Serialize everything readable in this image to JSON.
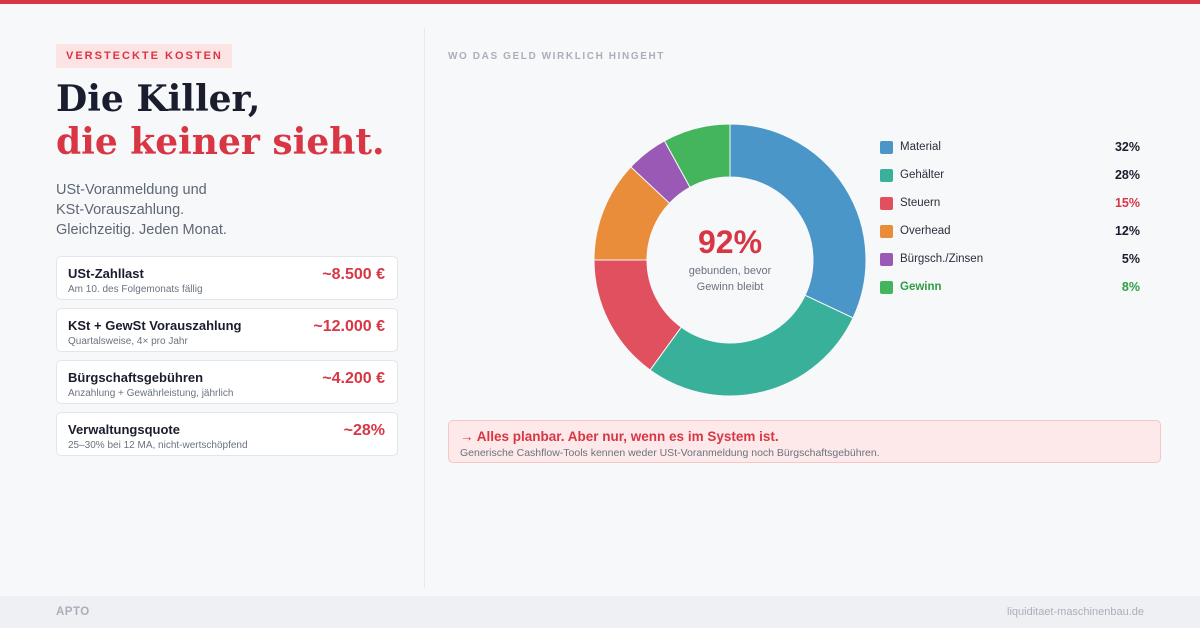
{
  "badge": "VERSTECKTE KOSTEN",
  "headline": {
    "line1": "Die Killer,",
    "line2": "die keiner sieht."
  },
  "subtitle": [
    "USt-Voranmeldung und",
    "KSt-Vorauszahlung.",
    "Gleichzeitig. Jeden Monat."
  ],
  "cards": [
    {
      "title": "USt-Zahllast",
      "sub": "Am 10. des Folgemonats fällig",
      "value": "~8.500 €"
    },
    {
      "title": "KSt + GewSt Vorauszahlung",
      "sub": "Quartalsweise, 4× pro Jahr",
      "value": "~12.000 €"
    },
    {
      "title": "Bürgschaftsgebühren",
      "sub": "Anzahlung + Gewährleistung, jährlich",
      "value": "~4.200 €"
    },
    {
      "title": "Verwaltungsquote",
      "sub": "25–30% bei 12 MA, nicht-wertschöpfend",
      "value": "~28%"
    }
  ],
  "section_label": "WO DAS GELD WIRKLICH HINGEHT",
  "chart_data": {
    "type": "pie",
    "style": "donut",
    "center_value": "92%",
    "center_caption": [
      "gebunden, bevor",
      "Gewinn bleibt"
    ],
    "legend_position": "right",
    "slices": [
      {
        "label": "Material",
        "value": 32,
        "display": "32%",
        "color": "#4a96c9"
      },
      {
        "label": "Gehälter",
        "value": 28,
        "display": "28%",
        "color": "#38b09a"
      },
      {
        "label": "Steuern",
        "value": 15,
        "display": "15%",
        "color": "#e0505e"
      },
      {
        "label": "Overhead",
        "value": 12,
        "display": "12%",
        "color": "#ea8d3a"
      },
      {
        "label": "Bürgsch./Zinsen",
        "value": 5,
        "display": "5%",
        "color": "#9b59b6"
      },
      {
        "label": "Gewinn",
        "value": 8,
        "display": "8%",
        "color": "#45b55d"
      }
    ]
  },
  "callout": {
    "title": "→ Alles planbar. Aber nur, wenn es im System ist.",
    "sub": "Generische Cashflow-Tools kennen weder USt-Voranmeldung noch Bürgschaftsgebühren."
  },
  "footer": {
    "brand": "APTO",
    "url": "liquiditaet-maschinenbau.de"
  },
  "colors": {
    "accent": "#d93645",
    "profit": "#2f9e44",
    "taxes_text": "#d93645"
  }
}
